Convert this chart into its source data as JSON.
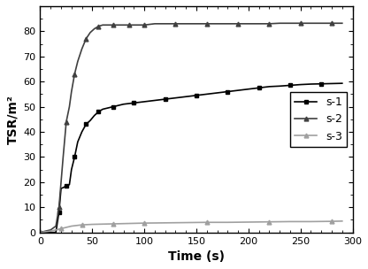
{
  "title": "",
  "xlabel": "Time (s)",
  "ylabel": "TSR/m²",
  "xlim": [
    0,
    300
  ],
  "ylim": [
    0,
    90
  ],
  "yticks": [
    0,
    10,
    20,
    30,
    40,
    50,
    60,
    70,
    80
  ],
  "xticks": [
    0,
    50,
    100,
    150,
    200,
    250,
    300
  ],
  "legend_entries": [
    "s-1",
    "s-2",
    "s-3"
  ],
  "s1_color": "#000000",
  "s2_color": "#404040",
  "s3_color": "#a0a0a0",
  "background_color": "#ffffff",
  "series": {
    "s1": {
      "t": [
        0,
        10,
        15,
        18,
        20,
        22,
        25,
        28,
        30,
        33,
        36,
        40,
        44,
        48,
        52,
        56,
        60,
        65,
        70,
        75,
        80,
        90,
        100,
        110,
        120,
        130,
        140,
        150,
        160,
        170,
        180,
        190,
        200,
        210,
        220,
        230,
        240,
        250,
        260,
        270,
        280,
        290
      ],
      "y": [
        0,
        0,
        0,
        8,
        17.5,
        17.8,
        18.5,
        19,
        25,
        30,
        36,
        40,
        43,
        44.5,
        46.5,
        48,
        49,
        49.5,
        50,
        50.5,
        51,
        51.5,
        52,
        52.5,
        53,
        53.5,
        54,
        54.5,
        55,
        55.5,
        56,
        56.5,
        57,
        57.5,
        58,
        58.2,
        58.5,
        58.8,
        59,
        59.1,
        59.2,
        59.3
      ]
    },
    "s2": {
      "t": [
        0,
        10,
        15,
        18,
        20,
        22,
        25,
        28,
        30,
        33,
        36,
        40,
        44,
        48,
        52,
        56,
        60,
        65,
        70,
        75,
        80,
        85,
        90,
        95,
        100,
        110,
        120,
        130,
        140,
        150,
        160,
        170,
        180,
        190,
        200,
        210,
        220,
        230,
        240,
        250,
        260,
        270,
        280,
        290
      ],
      "y": [
        0,
        1.0,
        2.5,
        10,
        20,
        30,
        44,
        50,
        56,
        63,
        68,
        73,
        77,
        79.5,
        81,
        82,
        82.5,
        82.5,
        82.5,
        82.5,
        82.5,
        82.5,
        82.5,
        82.5,
        82.5,
        83,
        83,
        83,
        83,
        83,
        83,
        83,
        83,
        83,
        83,
        83,
        83,
        83.2,
        83.2,
        83.2,
        83.2,
        83.2,
        83.2,
        83.2
      ]
    },
    "s3": {
      "t": [
        0,
        10,
        15,
        20,
        25,
        30,
        40,
        50,
        60,
        70,
        80,
        90,
        100,
        120,
        140,
        160,
        180,
        200,
        220,
        240,
        260,
        280,
        290
      ],
      "y": [
        0,
        0.5,
        1.0,
        1.5,
        2.0,
        2.5,
        3.0,
        3.2,
        3.3,
        3.4,
        3.5,
        3.6,
        3.7,
        3.8,
        3.9,
        4.0,
        4.0,
        4.1,
        4.2,
        4.3,
        4.3,
        4.4,
        4.5
      ]
    }
  }
}
